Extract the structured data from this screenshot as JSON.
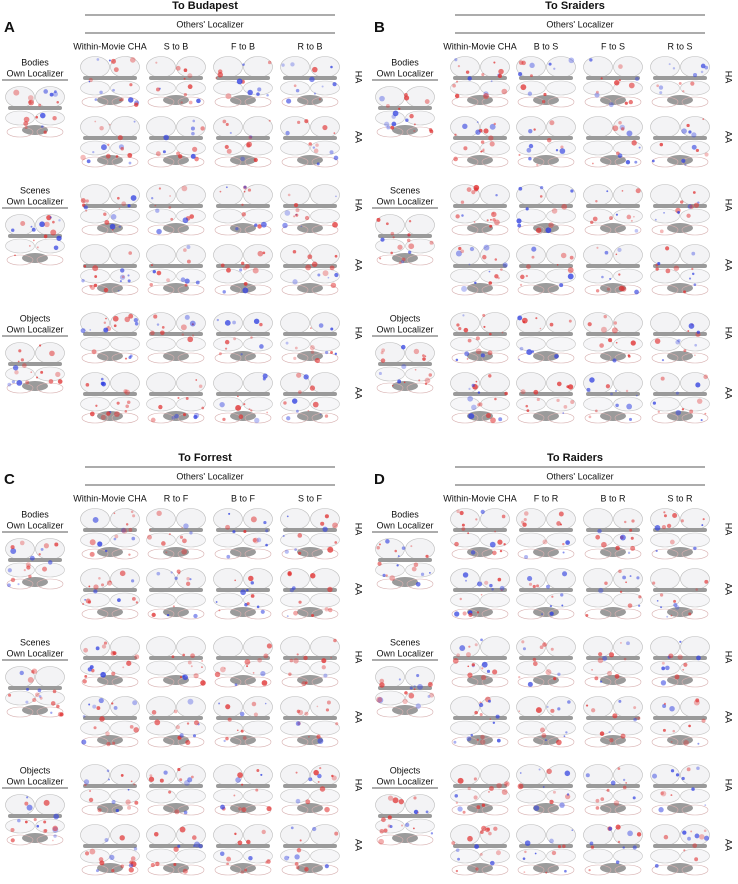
{
  "panels": [
    {
      "letter": "A",
      "title": "To Budapest",
      "group_header": "Others' Localizer",
      "columns": [
        "Within-Movie CHA",
        "S to B",
        "F to B",
        "R to B"
      ],
      "categories": [
        {
          "name": "Bodies",
          "label": "Own Localizer"
        },
        {
          "name": "Scenes",
          "label": "Own Localizer"
        },
        {
          "name": "Objects",
          "label": "Own Localizer"
        }
      ],
      "alignments": [
        "HA",
        "AA"
      ]
    },
    {
      "letter": "B",
      "title": "To Sraiders",
      "group_header": "Others' Localizer",
      "columns": [
        "Within-Movie CHA",
        "B to S",
        "F to S",
        "R to S"
      ],
      "categories": [
        {
          "name": "Bodies",
          "label": "Own Localizer"
        },
        {
          "name": "Scenes",
          "label": "Own Localizer"
        },
        {
          "name": "Objects",
          "label": "Own Localizer"
        }
      ],
      "alignments": [
        "HA",
        "AA"
      ]
    },
    {
      "letter": "C",
      "title": "To Forrest",
      "group_header": "Others' Localizer",
      "columns": [
        "Within-Movie CHA",
        "R to F",
        "B to F",
        "S to F"
      ],
      "categories": [
        {
          "name": "Bodies",
          "label": "Own Localizer"
        },
        {
          "name": "Scenes",
          "label": "Own Localizer"
        },
        {
          "name": "Objects",
          "label": "Own Localizer"
        }
      ],
      "alignments": [
        "HA",
        "AA"
      ]
    },
    {
      "letter": "D",
      "title": "To Raiders",
      "group_header": "Others' Localizer",
      "columns": [
        "Within-Movie CHA",
        "F to R",
        "B to R",
        "S to R"
      ],
      "categories": [
        {
          "name": "Bodies",
          "label": "Own Localizer"
        },
        {
          "name": "Scenes",
          "label": "Own Localizer"
        },
        {
          "name": "Objects",
          "label": "Own Localizer"
        }
      ],
      "alignments": [
        "HA",
        "AA"
      ]
    }
  ]
}
